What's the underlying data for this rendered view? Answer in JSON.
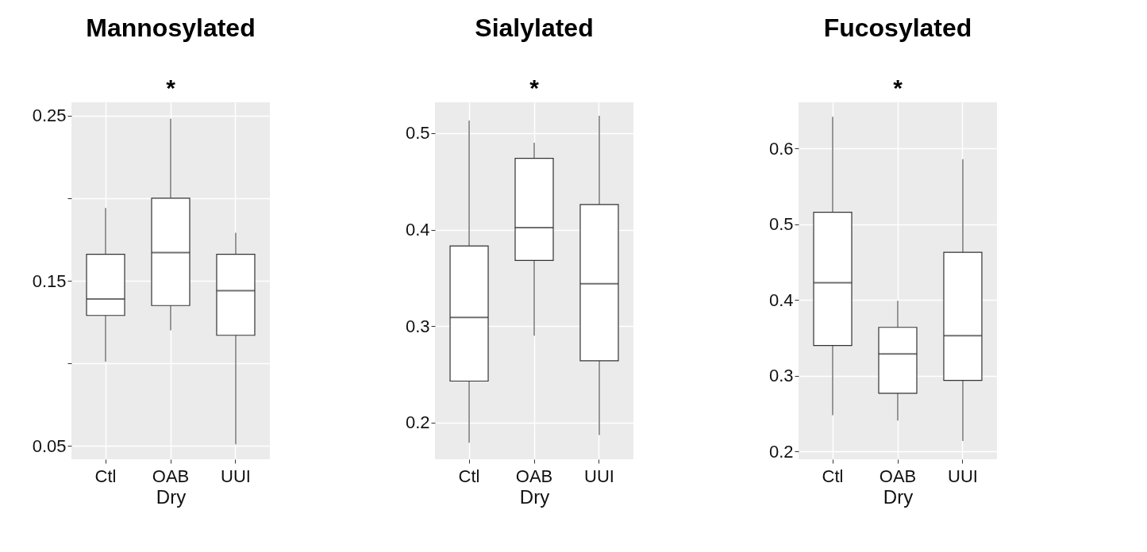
{
  "chart_data": [
    {
      "type": "box",
      "title": "Mannosylated",
      "xlabel": "Dry",
      "categories": [
        "Ctl",
        "OAB",
        "UUI"
      ],
      "ylim": [
        0.042,
        0.258
      ],
      "yticks": [
        0.05,
        {
          "value": 0.1,
          "label": null
        },
        0.15,
        {
          "value": 0.2,
          "label": null
        },
        0.25
      ],
      "grid": true,
      "annotations": [
        "*"
      ],
      "boxes": [
        {
          "low": 0.101,
          "q1": 0.129,
          "median": 0.139,
          "q3": 0.166,
          "high": 0.194
        },
        {
          "low": 0.12,
          "q1": 0.135,
          "median": 0.167,
          "q3": 0.2,
          "high": 0.248
        },
        {
          "low": 0.051,
          "q1": 0.117,
          "median": 0.144,
          "q3": 0.166,
          "high": 0.179
        }
      ]
    },
    {
      "type": "box",
      "title": "Sialylated",
      "xlabel": "Dry",
      "categories": [
        "Ctl",
        "OAB",
        "UUI"
      ],
      "ylim": [
        0.162,
        0.532
      ],
      "yticks": [
        0.2,
        0.3,
        0.4,
        0.5
      ],
      "grid": true,
      "annotations": [
        "*"
      ],
      "boxes": [
        {
          "low": 0.179,
          "q1": 0.243,
          "median": 0.309,
          "q3": 0.383,
          "high": 0.513
        },
        {
          "low": 0.29,
          "q1": 0.368,
          "median": 0.402,
          "q3": 0.474,
          "high": 0.49
        },
        {
          "low": 0.187,
          "q1": 0.264,
          "median": 0.344,
          "q3": 0.426,
          "high": 0.518
        }
      ]
    },
    {
      "type": "box",
      "title": "Fucosylated",
      "xlabel": "Dry",
      "categories": [
        "Ctl",
        "OAB",
        "UUI"
      ],
      "ylim": [
        0.19,
        0.661
      ],
      "yticks": [
        0.2,
        0.3,
        0.4,
        0.5,
        0.6
      ],
      "grid": true,
      "annotations": [
        "*"
      ],
      "boxes": [
        {
          "low": 0.248,
          "q1": 0.34,
          "median": 0.423,
          "q3": 0.516,
          "high": 0.642
        },
        {
          "low": 0.241,
          "q1": 0.277,
          "median": 0.329,
          "q3": 0.364,
          "high": 0.399
        },
        {
          "low": 0.214,
          "q1": 0.294,
          "median": 0.353,
          "q3": 0.463,
          "high": 0.586
        }
      ]
    }
  ]
}
